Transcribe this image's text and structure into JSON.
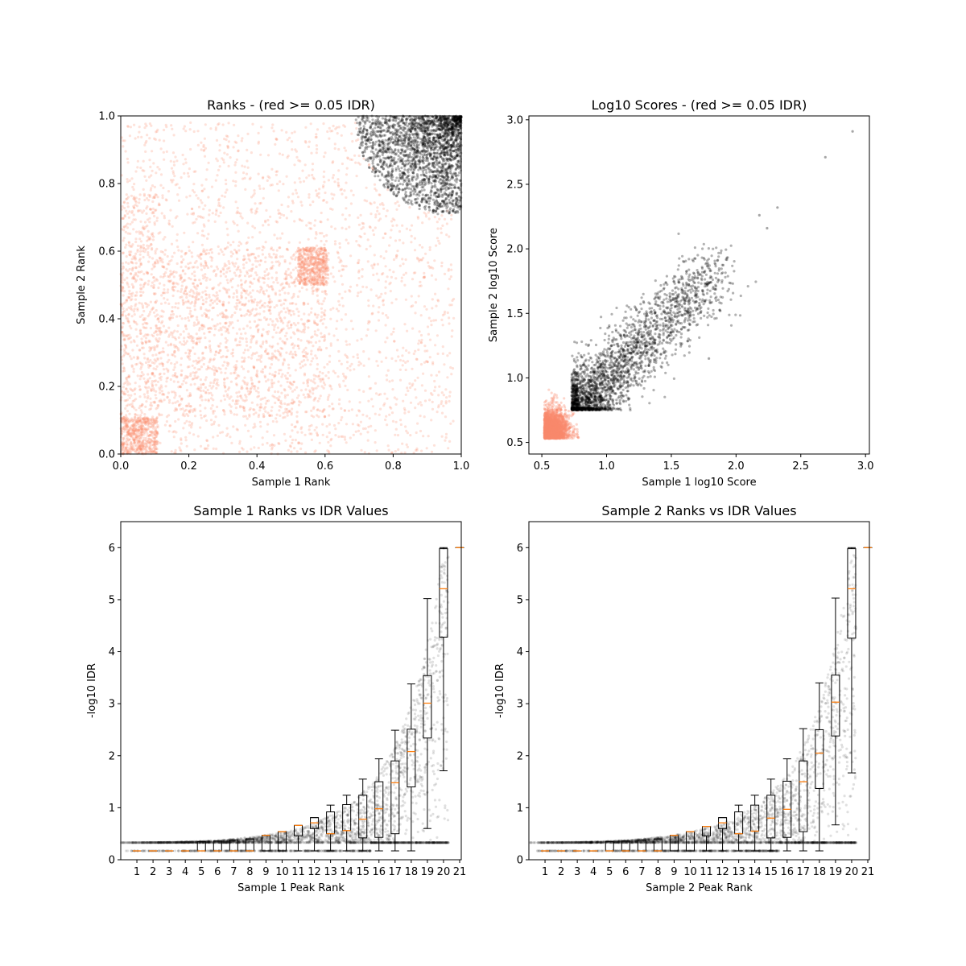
{
  "chart_data": [
    {
      "type": "scatter",
      "title": "Ranks - (red >= 0.05 IDR)",
      "xlabel": "Sample 1 Rank",
      "ylabel": "Sample 2 Rank",
      "xlim": [
        0,
        1
      ],
      "ylim": [
        0,
        1
      ],
      "xticks": [
        "0.0",
        "0.2",
        "0.4",
        "0.6",
        "0.8",
        "1.0"
      ],
      "yticks": [
        "0.0",
        "0.2",
        "0.4",
        "0.6",
        "0.8",
        "1.0"
      ],
      "grid": false,
      "colors": {
        "idr_above": "#fa8a6c",
        "idr_below": "#000000"
      }
    },
    {
      "type": "scatter",
      "title": "Log10 Scores - (red >= 0.05 IDR)",
      "xlabel": "Sample 1 log10 Score",
      "ylabel": "Sample 2 log10 Score",
      "xlim": [
        0.4,
        3.03
      ],
      "ylim": [
        0.41,
        3.03
      ],
      "xticks": [
        "0.5",
        "1.0",
        "1.5",
        "2.0",
        "2.5",
        "3.0"
      ],
      "yticks": [
        "0.5",
        "1.0",
        "1.5",
        "2.0",
        "2.5",
        "3.0"
      ],
      "grid": false,
      "colors": {
        "idr_above": "#fa8a6c",
        "idr_below": "#000000"
      }
    },
    {
      "type": "box",
      "title": "Sample 1 Ranks vs IDR Values",
      "xlabel": "Sample 1 Peak Rank",
      "ylabel": "-log10 IDR",
      "xlim": [
        0,
        21.1
      ],
      "ylim": [
        0,
        6.5
      ],
      "xticks": [
        "1",
        "2",
        "3",
        "4",
        "5",
        "6",
        "7",
        "8",
        "9",
        "10",
        "11",
        "12",
        "13",
        "14",
        "15",
        "16",
        "17",
        "18",
        "19",
        "20",
        "21"
      ],
      "yticks": [
        "0",
        "1",
        "2",
        "3",
        "4",
        "5",
        "6"
      ],
      "boxes": [
        {
          "pos": 1,
          "whislo": 0.17,
          "q1": 0.17,
          "med": 0.17,
          "q3": 0.17,
          "whishi": 0.17
        },
        {
          "pos": 2,
          "whislo": 0.17,
          "q1": 0.17,
          "med": 0.17,
          "q3": 0.17,
          "whishi": 0.17
        },
        {
          "pos": 3,
          "whislo": 0.17,
          "q1": 0.17,
          "med": 0.17,
          "q3": 0.17,
          "whishi": 0.17
        },
        {
          "pos": 4,
          "whislo": 0.17,
          "q1": 0.17,
          "med": 0.17,
          "q3": 0.17,
          "whishi": 0.17
        },
        {
          "pos": 5,
          "whislo": 0.17,
          "q1": 0.17,
          "med": 0.17,
          "q3": 0.35,
          "whishi": 0.35
        },
        {
          "pos": 6,
          "whislo": 0.17,
          "q1": 0.17,
          "med": 0.17,
          "q3": 0.36,
          "whishi": 0.36
        },
        {
          "pos": 7,
          "whislo": 0.17,
          "q1": 0.17,
          "med": 0.17,
          "q3": 0.38,
          "whishi": 0.38
        },
        {
          "pos": 8,
          "whislo": 0.17,
          "q1": 0.17,
          "med": 0.17,
          "q3": 0.4,
          "whishi": 0.4
        },
        {
          "pos": 9,
          "whislo": 0.17,
          "q1": 0.17,
          "med": 0.47,
          "q3": 0.47,
          "whishi": 0.47
        },
        {
          "pos": 10,
          "whislo": 0.17,
          "q1": 0.17,
          "med": 0.54,
          "q3": 0.54,
          "whishi": 0.54
        },
        {
          "pos": 11,
          "whislo": 0.17,
          "q1": 0.46,
          "med": 0.66,
          "q3": 0.66,
          "whishi": 0.66
        },
        {
          "pos": 12,
          "whislo": 0.17,
          "q1": 0.6,
          "med": 0.71,
          "q3": 0.81,
          "whishi": 0.81
        },
        {
          "pos": 13,
          "whislo": 0.17,
          "q1": 0.5,
          "med": 0.5,
          "q3": 0.92,
          "whishi": 1.05
        },
        {
          "pos": 14,
          "whislo": 0.17,
          "q1": 0.56,
          "med": 0.56,
          "q3": 1.06,
          "whishi": 1.24
        },
        {
          "pos": 15,
          "whislo": 0.17,
          "q1": 0.42,
          "med": 0.78,
          "q3": 1.24,
          "whishi": 1.55
        },
        {
          "pos": 16,
          "whislo": 0.17,
          "q1": 0.43,
          "med": 0.98,
          "q3": 1.5,
          "whishi": 1.94
        },
        {
          "pos": 17,
          "whislo": 0.17,
          "q1": 0.5,
          "med": 1.48,
          "q3": 1.9,
          "whishi": 2.49
        },
        {
          "pos": 18,
          "whislo": 0.17,
          "q1": 1.4,
          "med": 2.08,
          "q3": 2.51,
          "whishi": 3.38
        },
        {
          "pos": 19,
          "whislo": 0.6,
          "q1": 2.34,
          "med": 3.01,
          "q3": 3.54,
          "whishi": 5.02
        },
        {
          "pos": 20,
          "whislo": 1.71,
          "q1": 4.28,
          "med": 5.21,
          "q3": 5.98,
          "whishi": 6.0
        },
        {
          "pos": 21,
          "whislo": 6.0,
          "q1": 6.0,
          "med": 6.0,
          "q3": 6.0,
          "whishi": 6.0
        }
      ],
      "colors": {
        "points": "#000000",
        "median": "#ff7f0e"
      }
    },
    {
      "type": "box",
      "title": "Sample 2 Ranks vs IDR Values",
      "xlabel": "Sample 2 Peak Rank",
      "ylabel": "-log10 IDR",
      "xlim": [
        0,
        21.1
      ],
      "ylim": [
        0,
        6.5
      ],
      "xticks": [
        "1",
        "2",
        "3",
        "4",
        "5",
        "6",
        "7",
        "8",
        "9",
        "10",
        "11",
        "12",
        "13",
        "14",
        "15",
        "16",
        "17",
        "18",
        "19",
        "20",
        "21"
      ],
      "yticks": [
        "0",
        "1",
        "2",
        "3",
        "4",
        "5",
        "6"
      ],
      "boxes": [
        {
          "pos": 1,
          "whislo": 0.17,
          "q1": 0.17,
          "med": 0.17,
          "q3": 0.17,
          "whishi": 0.17
        },
        {
          "pos": 2,
          "whislo": 0.17,
          "q1": 0.17,
          "med": 0.17,
          "q3": 0.17,
          "whishi": 0.17
        },
        {
          "pos": 3,
          "whislo": 0.17,
          "q1": 0.17,
          "med": 0.17,
          "q3": 0.17,
          "whishi": 0.17
        },
        {
          "pos": 4,
          "whislo": 0.17,
          "q1": 0.17,
          "med": 0.17,
          "q3": 0.17,
          "whishi": 0.17
        },
        {
          "pos": 5,
          "whislo": 0.17,
          "q1": 0.17,
          "med": 0.17,
          "q3": 0.35,
          "whishi": 0.35
        },
        {
          "pos": 6,
          "whislo": 0.17,
          "q1": 0.17,
          "med": 0.17,
          "q3": 0.36,
          "whishi": 0.36
        },
        {
          "pos": 7,
          "whislo": 0.17,
          "q1": 0.17,
          "med": 0.17,
          "q3": 0.38,
          "whishi": 0.38
        },
        {
          "pos": 8,
          "whislo": 0.17,
          "q1": 0.17,
          "med": 0.17,
          "q3": 0.4,
          "whishi": 0.4
        },
        {
          "pos": 9,
          "whislo": 0.17,
          "q1": 0.17,
          "med": 0.47,
          "q3": 0.47,
          "whishi": 0.47
        },
        {
          "pos": 10,
          "whislo": 0.17,
          "q1": 0.17,
          "med": 0.54,
          "q3": 0.54,
          "whishi": 0.54
        },
        {
          "pos": 11,
          "whislo": 0.17,
          "q1": 0.46,
          "med": 0.64,
          "q3": 0.64,
          "whishi": 0.64
        },
        {
          "pos": 12,
          "whislo": 0.17,
          "q1": 0.6,
          "med": 0.71,
          "q3": 0.81,
          "whishi": 0.81
        },
        {
          "pos": 13,
          "whislo": 0.17,
          "q1": 0.5,
          "med": 0.5,
          "q3": 0.92,
          "whishi": 1.05
        },
        {
          "pos": 14,
          "whislo": 0.17,
          "q1": 0.55,
          "med": 0.55,
          "q3": 1.05,
          "whishi": 1.24
        },
        {
          "pos": 15,
          "whislo": 0.17,
          "q1": 0.42,
          "med": 0.8,
          "q3": 1.24,
          "whishi": 1.55
        },
        {
          "pos": 16,
          "whislo": 0.17,
          "q1": 0.43,
          "med": 0.97,
          "q3": 1.51,
          "whishi": 1.94
        },
        {
          "pos": 17,
          "whislo": 0.17,
          "q1": 0.54,
          "med": 1.5,
          "q3": 1.9,
          "whishi": 2.52
        },
        {
          "pos": 18,
          "whislo": 0.17,
          "q1": 1.37,
          "med": 2.05,
          "q3": 2.5,
          "whishi": 3.4
        },
        {
          "pos": 19,
          "whislo": 0.67,
          "q1": 2.38,
          "med": 3.03,
          "q3": 3.55,
          "whishi": 5.03
        },
        {
          "pos": 20,
          "whislo": 1.67,
          "q1": 4.26,
          "med": 5.21,
          "q3": 5.98,
          "whishi": 6.0
        },
        {
          "pos": 21,
          "whislo": 6.0,
          "q1": 6.0,
          "med": 6.0,
          "q3": 6.0,
          "whishi": 6.0
        }
      ],
      "colors": {
        "points": "#000000",
        "median": "#ff7f0e"
      }
    }
  ]
}
